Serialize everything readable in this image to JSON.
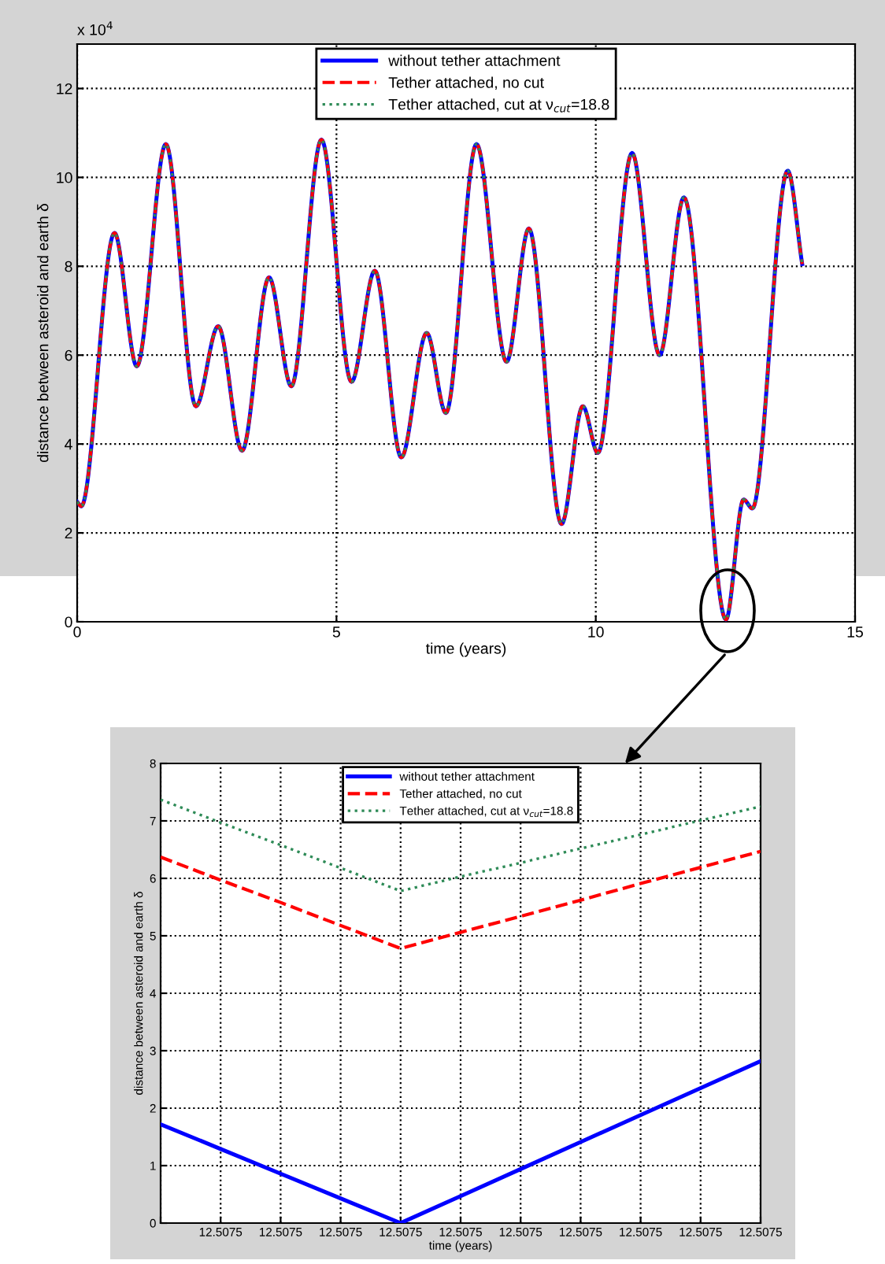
{
  "chart_data": [
    {
      "type": "line",
      "xlabel": "time (years)",
      "ylabel": "distance between asteroid and earth δ",
      "annotations": [
        "x 10$^{4}$"
      ],
      "x": [
        0.0,
        0.08,
        0.72,
        1.15,
        1.71,
        2.29,
        2.72,
        3.18,
        3.7,
        4.13,
        4.71,
        5.29,
        5.74,
        6.25,
        6.74,
        7.11,
        7.7,
        8.28,
        8.71,
        9.34,
        9.75,
        10.04,
        10.7,
        11.23,
        11.7,
        12.51,
        12.85,
        13.02,
        13.7,
        13.98
      ],
      "series": [
        {
          "name": "without tether attachment",
          "color": "#0000ff",
          "line_style": "solid",
          "values": [
            2.7,
            2.6,
            8.75,
            5.75,
            10.75,
            4.85,
            6.65,
            3.85,
            7.75,
            5.3,
            10.85,
            5.4,
            7.9,
            3.7,
            6.5,
            4.7,
            10.75,
            5.85,
            8.85,
            2.2,
            4.85,
            3.8,
            10.55,
            6.0,
            9.55,
            0.05,
            2.75,
            2.55,
            10.15,
            8.05
          ]
        },
        {
          "name": "Tether attached, no cut",
          "color": "#ff0000",
          "line_style": "dashed",
          "values": [
            2.7,
            2.6,
            8.75,
            5.75,
            10.75,
            4.85,
            6.65,
            3.85,
            7.75,
            5.3,
            10.85,
            5.4,
            7.9,
            3.7,
            6.5,
            4.7,
            10.75,
            5.85,
            8.85,
            2.2,
            4.85,
            3.8,
            10.55,
            6.0,
            9.55,
            0.05,
            2.75,
            2.55,
            10.15,
            8.05
          ]
        },
        {
          "name": "Tether attached, cut at ν$_{cut}$=18.8",
          "color": "#2e8b57",
          "line_style": "dotted",
          "values": [
            2.7,
            2.6,
            8.75,
            5.75,
            10.75,
            4.85,
            6.65,
            3.85,
            7.75,
            5.3,
            10.85,
            5.4,
            7.9,
            3.7,
            6.5,
            4.7,
            10.75,
            5.85,
            8.85,
            2.2,
            4.85,
            3.8,
            10.55,
            6.0,
            9.55,
            0.05,
            2.75,
            2.55,
            10.15,
            8.05
          ]
        }
      ],
      "xlim": [
        0,
        15
      ],
      "xticks": [
        0,
        5,
        10,
        15
      ],
      "ylim": [
        0,
        13
      ],
      "yticks": [
        {
          "value": 0,
          "label": "0"
        },
        {
          "value": 2,
          "label": "2"
        },
        {
          "value": 4,
          "label": "4"
        },
        {
          "value": 6,
          "label": "6"
        },
        {
          "value": 8,
          "label": "8"
        },
        {
          "value": 10,
          "label": "10"
        },
        {
          "value": 12,
          "label": "12"
        }
      ],
      "grid": true,
      "legend": "top"
    },
    {
      "type": "line",
      "xlabel": "time (years)",
      "ylabel": "distance between asteroid and earth δ",
      "categories": [
        null,
        "12.5075",
        "12.5075",
        "12.5075",
        "12.5075",
        "12.5075",
        "12.5075",
        "12.5075",
        "12.5075",
        "12.5075",
        "12.5075"
      ],
      "series": [
        {
          "name": "without tether attachment",
          "color": "#0000ff",
          "line_style": "solid",
          "values": [
            1.72,
            1.29,
            0.86,
            0.43,
            0.0,
            0.47,
            0.94,
            1.41,
            1.88,
            2.35,
            2.82
          ]
        },
        {
          "name": "Tether attached, no cut",
          "color": "#ff0000",
          "line_style": "dashed",
          "values": [
            6.37,
            5.97,
            5.58,
            5.18,
            4.78,
            5.06,
            5.34,
            5.62,
            5.91,
            6.19,
            6.47
          ]
        },
        {
          "name": "Tether attached, cut at ν$_{cut}$=18.8",
          "color": "#2e8b57",
          "line_style": "dotted",
          "values": [
            7.37,
            6.97,
            6.58,
            6.18,
            5.78,
            6.03,
            6.27,
            6.52,
            6.76,
            7.01,
            7.25
          ]
        }
      ],
      "ylim": [
        0,
        8
      ],
      "yticks": [
        0,
        1,
        2,
        3,
        4,
        5,
        6,
        7,
        8
      ],
      "grid": true,
      "legend": "top"
    }
  ]
}
